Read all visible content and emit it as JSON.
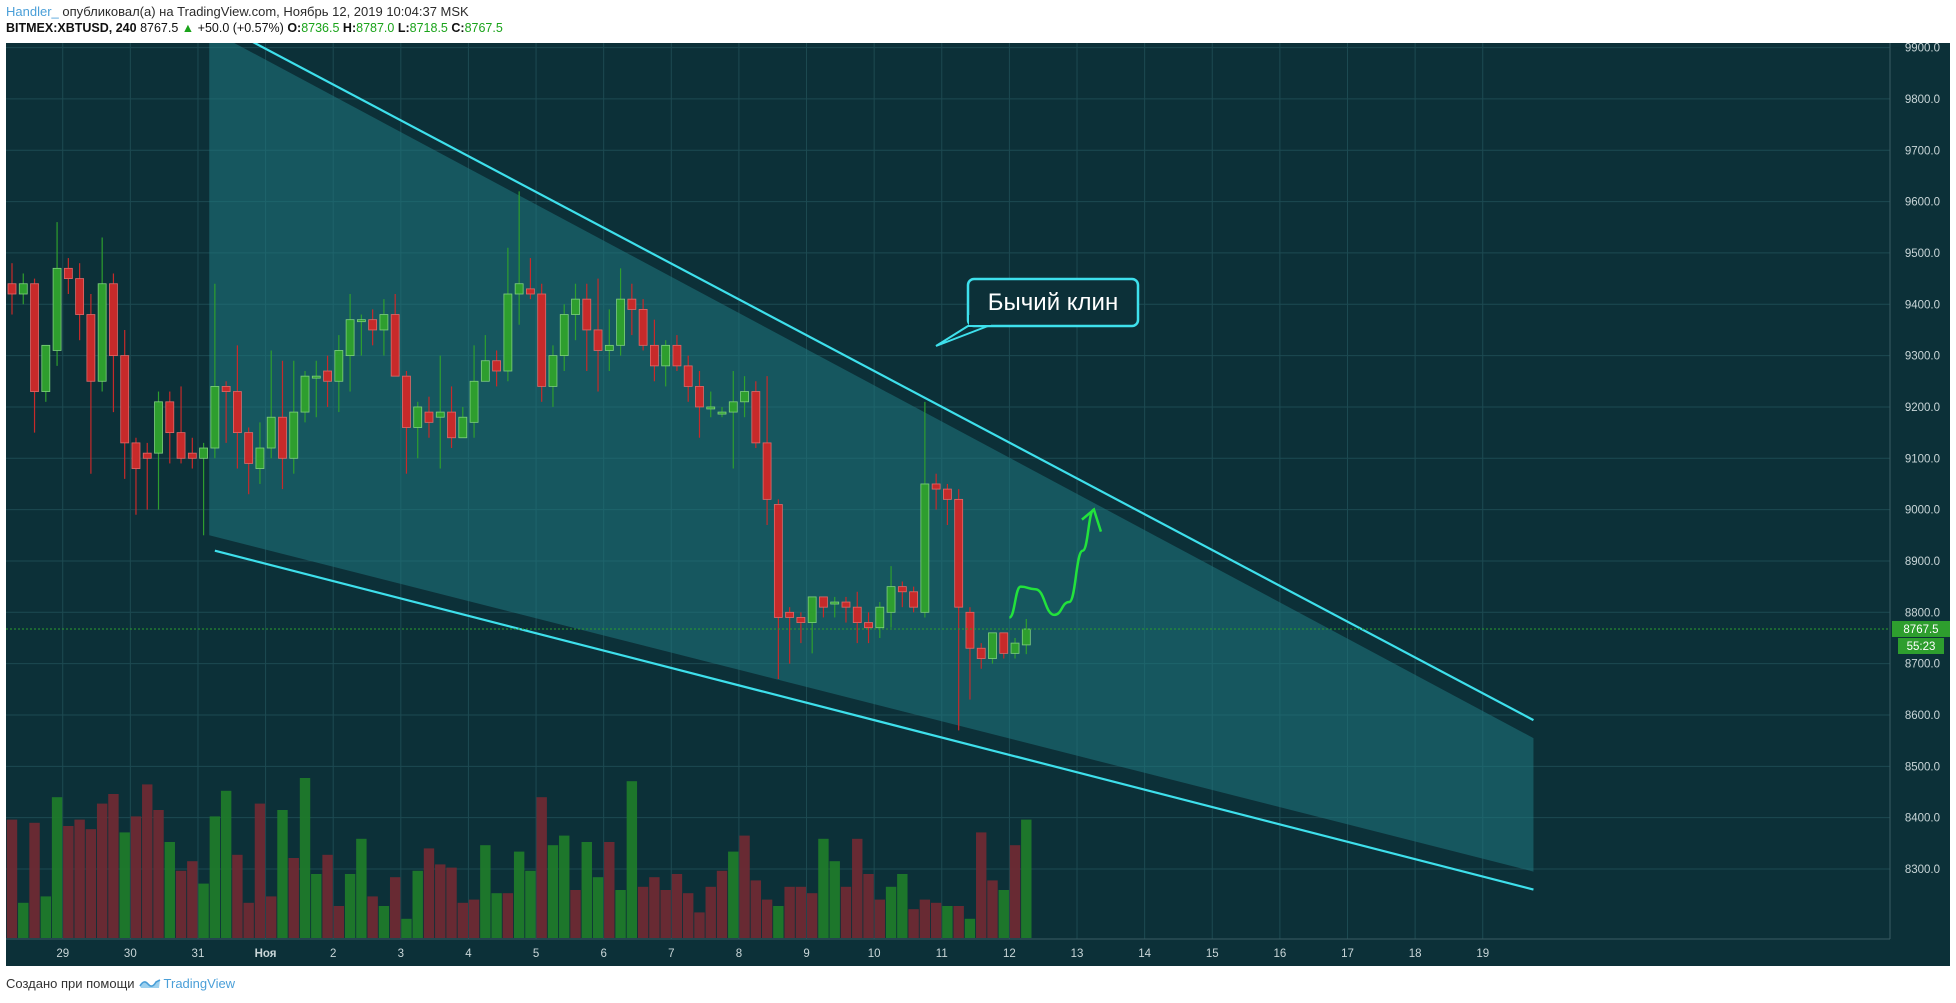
{
  "header": {
    "author": "Handler_",
    "published_text": "опубликовал(а) на TradingView.com, Ноябрь 12, 2019 10:04:37 MSK",
    "symbol": "BITMEX:XBTUSD, 240",
    "last": "8767.5",
    "change": "+50.0 (+0.57%)",
    "o_label": "O:",
    "o": "8736.5",
    "h_label": "H:",
    "h": "8787.0",
    "l_label": "L:",
    "l": "8718.5",
    "c_label": "C:",
    "c": "8767.5"
  },
  "footer": {
    "text": "Создано при помощи",
    "brand": "TradingView",
    "brand_icon": "tradingview-logo-icon"
  },
  "colors": {
    "background": "#0c3038",
    "grid": "#1d4a52",
    "up": "#2e9e2e",
    "down": "#c72a2a",
    "wedge": "#3ee0ec",
    "annotation_arrow": "#22e23c"
  },
  "annotation": {
    "label": "Бычий клин"
  },
  "chart_data": {
    "type": "candlestick",
    "price_axis": {
      "ticks": [
        9900,
        9800,
        9700,
        9600,
        9500,
        9400,
        9300,
        9200,
        9100,
        9000,
        8900,
        8800,
        8700,
        8600,
        8500,
        8400,
        8300
      ],
      "format": "0.0",
      "range": [
        8225,
        9980
      ]
    },
    "last_price_label": "8767.5",
    "countdown_label": "55:23",
    "time_axis": {
      "ticks": [
        {
          "label": "29",
          "bar": 4.5
        },
        {
          "label": "30",
          "bar": 10.5
        },
        {
          "label": "31",
          "bar": 16.5
        },
        {
          "label": "Ноя",
          "bar": 22.5
        },
        {
          "label": "2",
          "bar": 28.5
        },
        {
          "label": "3",
          "bar": 34.5
        },
        {
          "label": "4",
          "bar": 40.5
        },
        {
          "label": "5",
          "bar": 46.5
        },
        {
          "label": "6",
          "bar": 52.5
        },
        {
          "label": "7",
          "bar": 58.5
        },
        {
          "label": "8",
          "bar": 64.5
        },
        {
          "label": "9",
          "bar": 70.5
        },
        {
          "label": "10",
          "bar": 76.5
        },
        {
          "label": "11",
          "bar": 82.5
        },
        {
          "label": "12",
          "bar": 88.5
        },
        {
          "label": "13",
          "bar": 94.5
        },
        {
          "label": "14",
          "bar": 100.5
        },
        {
          "label": "15",
          "bar": 106.5
        },
        {
          "label": "16",
          "bar": 112.5
        },
        {
          "label": "17",
          "bar": 118.5
        },
        {
          "label": "18",
          "bar": 124.5
        },
        {
          "label": "19",
          "bar": 130.5
        }
      ],
      "bars_total": 135
    },
    "ohlc": [
      [
        9440,
        9480,
        9380,
        9420
      ],
      [
        9420,
        9460,
        9400,
        9440
      ],
      [
        9440,
        9450,
        9150,
        9230
      ],
      [
        9230,
        9320,
        9210,
        9320
      ],
      [
        9310,
        9560,
        9280,
        9470
      ],
      [
        9470,
        9490,
        9420,
        9450
      ],
      [
        9450,
        9480,
        9330,
        9380
      ],
      [
        9380,
        9420,
        9070,
        9250
      ],
      [
        9250,
        9530,
        9230,
        9440
      ],
      [
        9440,
        9460,
        9190,
        9300
      ],
      [
        9300,
        9350,
        9060,
        9130
      ],
      [
        9130,
        9140,
        8990,
        9080
      ],
      [
        9110,
        9130,
        9000,
        9100
      ],
      [
        9110,
        9230,
        9000,
        9210
      ],
      [
        9210,
        9230,
        9090,
        9150
      ],
      [
        9150,
        9240,
        9090,
        9100
      ],
      [
        9110,
        9140,
        9080,
        9100
      ],
      [
        9100,
        9130,
        8950,
        9120
      ],
      [
        9120,
        9440,
        9100,
        9240
      ],
      [
        9240,
        9250,
        9130,
        9230
      ],
      [
        9230,
        9320,
        9080,
        9150
      ],
      [
        9150,
        9160,
        9030,
        9090
      ],
      [
        9080,
        9170,
        9050,
        9120
      ],
      [
        9120,
        9310,
        9100,
        9180
      ],
      [
        9180,
        9290,
        9040,
        9100
      ],
      [
        9100,
        9290,
        9070,
        9190
      ],
      [
        9190,
        9270,
        9170,
        9260
      ],
      [
        9260,
        9290,
        9180,
        9260
      ],
      [
        9270,
        9300,
        9200,
        9250
      ],
      [
        9250,
        9340,
        9190,
        9310
      ],
      [
        9300,
        9420,
        9230,
        9370
      ],
      [
        9370,
        9380,
        9300,
        9370
      ],
      [
        9370,
        9390,
        9320,
        9350
      ],
      [
        9350,
        9410,
        9300,
        9380
      ],
      [
        9380,
        9420,
        9260,
        9260
      ],
      [
        9260,
        9270,
        9070,
        9160
      ],
      [
        9160,
        9210,
        9100,
        9200
      ],
      [
        9190,
        9220,
        9140,
        9170
      ],
      [
        9180,
        9300,
        9080,
        9190
      ],
      [
        9190,
        9240,
        9120,
        9140
      ],
      [
        9140,
        9200,
        9150,
        9180
      ],
      [
        9170,
        9320,
        9140,
        9250
      ],
      [
        9250,
        9340,
        9250,
        9290
      ],
      [
        9290,
        9310,
        9240,
        9270
      ],
      [
        9270,
        9510,
        9250,
        9420
      ],
      [
        9420,
        9620,
        9360,
        9440
      ],
      [
        9430,
        9490,
        9410,
        9420
      ],
      [
        9420,
        9440,
        9210,
        9240
      ],
      [
        9240,
        9320,
        9200,
        9300
      ],
      [
        9300,
        9400,
        9270,
        9380
      ],
      [
        9380,
        9440,
        9330,
        9410
      ],
      [
        9410,
        9440,
        9270,
        9350
      ],
      [
        9350,
        9450,
        9230,
        9310
      ],
      [
        9310,
        9390,
        9270,
        9320
      ],
      [
        9320,
        9470,
        9300,
        9410
      ],
      [
        9410,
        9440,
        9340,
        9390
      ],
      [
        9390,
        9410,
        9310,
        9320
      ],
      [
        9320,
        9370,
        9250,
        9280
      ],
      [
        9280,
        9330,
        9240,
        9320
      ],
      [
        9320,
        9340,
        9270,
        9280
      ],
      [
        9280,
        9300,
        9210,
        9240
      ],
      [
        9240,
        9270,
        9140,
        9200
      ],
      [
        9200,
        9230,
        9180,
        9200
      ],
      [
        9190,
        9200,
        9180,
        9190
      ],
      [
        9190,
        9270,
        9080,
        9210
      ],
      [
        9210,
        9260,
        9180,
        9230
      ],
      [
        9230,
        9250,
        9120,
        9130
      ],
      [
        9130,
        9260,
        8970,
        9020
      ],
      [
        9010,
        9020,
        8670,
        8790
      ],
      [
        8800,
        8810,
        8700,
        8790
      ],
      [
        8790,
        8800,
        8740,
        8780
      ],
      [
        8780,
        8830,
        8720,
        8830
      ],
      [
        8830,
        8830,
        8790,
        8810
      ],
      [
        8820,
        8830,
        8790,
        8820
      ],
      [
        8820,
        8830,
        8780,
        8810
      ],
      [
        8810,
        8840,
        8740,
        8780
      ],
      [
        8780,
        8800,
        8740,
        8770
      ],
      [
        8770,
        8820,
        8750,
        8810
      ],
      [
        8800,
        8890,
        8770,
        8850
      ],
      [
        8850,
        8860,
        8810,
        8840
      ],
      [
        8840,
        8850,
        8800,
        8810
      ],
      [
        8800,
        9210,
        8790,
        9050
      ],
      [
        9050,
        9070,
        9000,
        9040
      ],
      [
        9040,
        9050,
        8970,
        9020
      ],
      [
        9020,
        9040,
        8570,
        8810
      ],
      [
        8800,
        8810,
        8630,
        8730
      ],
      [
        8730,
        8740,
        8690,
        8710
      ],
      [
        8710,
        8760,
        8700,
        8760
      ],
      [
        8760,
        8760,
        8710,
        8720
      ],
      [
        8720,
        8750,
        8710,
        8740
      ],
      [
        8736.5,
        8787,
        8718.5,
        8767.5
      ]
    ],
    "volume": [
      [
        185,
        "down"
      ],
      [
        55,
        "up"
      ],
      [
        180,
        "down"
      ],
      [
        65,
        "up"
      ],
      [
        220,
        "up"
      ],
      [
        175,
        "down"
      ],
      [
        185,
        "down"
      ],
      [
        170,
        "down"
      ],
      [
        210,
        "down"
      ],
      [
        225,
        "down"
      ],
      [
        165,
        "up"
      ],
      [
        190,
        "down"
      ],
      [
        240,
        "down"
      ],
      [
        200,
        "down"
      ],
      [
        150,
        "up"
      ],
      [
        105,
        "down"
      ],
      [
        120,
        "down"
      ],
      [
        85,
        "up"
      ],
      [
        190,
        "up"
      ],
      [
        230,
        "up"
      ],
      [
        130,
        "down"
      ],
      [
        55,
        "down"
      ],
      [
        210,
        "down"
      ],
      [
        65,
        "down"
      ],
      [
        200,
        "up"
      ],
      [
        125,
        "down"
      ],
      [
        250,
        "up"
      ],
      [
        100,
        "up"
      ],
      [
        130,
        "down"
      ],
      [
        50,
        "down"
      ],
      [
        100,
        "up"
      ],
      [
        155,
        "up"
      ],
      [
        65,
        "down"
      ],
      [
        50,
        "up"
      ],
      [
        95,
        "down"
      ],
      [
        30,
        "up"
      ],
      [
        105,
        "up"
      ],
      [
        140,
        "down"
      ],
      [
        115,
        "down"
      ],
      [
        110,
        "down"
      ],
      [
        55,
        "down"
      ],
      [
        60,
        "down"
      ],
      [
        145,
        "up"
      ],
      [
        70,
        "up"
      ],
      [
        70,
        "down"
      ],
      [
        135,
        "up"
      ],
      [
        105,
        "up"
      ],
      [
        220,
        "down"
      ],
      [
        145,
        "up"
      ],
      [
        160,
        "up"
      ],
      [
        75,
        "down"
      ],
      [
        150,
        "up"
      ],
      [
        95,
        "up"
      ],
      [
        150,
        "down"
      ],
      [
        75,
        "up"
      ],
      [
        245,
        "up"
      ],
      [
        80,
        "down"
      ],
      [
        95,
        "down"
      ],
      [
        75,
        "down"
      ],
      [
        100,
        "down"
      ],
      [
        70,
        "down"
      ],
      [
        40,
        "down"
      ],
      [
        80,
        "down"
      ],
      [
        105,
        "down"
      ],
      [
        135,
        "up"
      ],
      [
        160,
        "down"
      ],
      [
        90,
        "down"
      ],
      [
        60,
        "down"
      ],
      [
        50,
        "up"
      ],
      [
        80,
        "down"
      ],
      [
        80,
        "down"
      ],
      [
        70,
        "down"
      ],
      [
        155,
        "up"
      ],
      [
        120,
        "up"
      ],
      [
        80,
        "down"
      ],
      [
        155,
        "down"
      ],
      [
        100,
        "down"
      ],
      [
        60,
        "down"
      ],
      [
        80,
        "up"
      ],
      [
        100,
        "up"
      ],
      [
        45,
        "down"
      ],
      [
        60,
        "down"
      ],
      [
        55,
        "down"
      ],
      [
        50,
        "up"
      ],
      [
        50,
        "down"
      ],
      [
        30,
        "up"
      ],
      [
        165,
        "down"
      ],
      [
        90,
        "down"
      ],
      [
        75,
        "up"
      ],
      [
        145,
        "down"
      ],
      [
        185,
        "up"
      ]
    ],
    "wedge": {
      "fill_polygon": [
        [
          17.5,
          9935
        ],
        [
          135,
          8555
        ],
        [
          135,
          8295
        ],
        [
          17.5,
          8950
        ]
      ],
      "upper_line": [
        [
          18,
          9950
        ],
        [
          135,
          8590
        ]
      ],
      "lower_line": [
        [
          18,
          8920
        ],
        [
          135,
          8260
        ]
      ]
    },
    "projection": [
      [
        88.5,
        8790
      ],
      [
        89.5,
        8850
      ],
      [
        90.8,
        8845
      ],
      [
        92.5,
        8795
      ],
      [
        93.8,
        8820
      ],
      [
        95,
        8920
      ],
      [
        96,
        9000
      ]
    ]
  }
}
